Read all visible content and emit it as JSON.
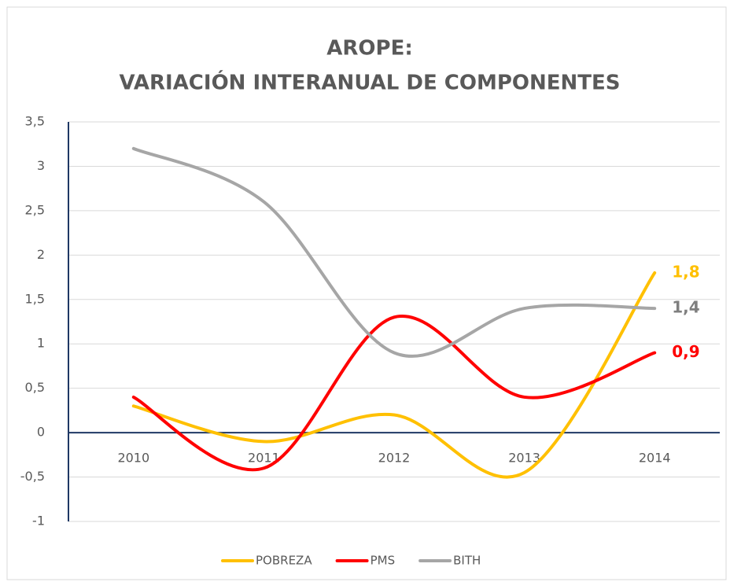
{
  "chart_data": {
    "type": "line",
    "title": [
      "AROPE:",
      "VARIACIÓN INTERANUAL DE COMPONENTES"
    ],
    "categories": [
      "2010",
      "2011",
      "2012",
      "2013",
      "2014"
    ],
    "series": [
      {
        "name": "POBREZA",
        "color": "#ffc000",
        "values": [
          0.3,
          -0.1,
          0.2,
          -0.45,
          1.8
        ],
        "value_labels": [
          null,
          null,
          null,
          null,
          "1,8"
        ]
      },
      {
        "name": "PMS",
        "color": "#ff0000",
        "values": [
          0.4,
          -0.4,
          1.3,
          0.4,
          0.9
        ],
        "value_labels": [
          null,
          null,
          null,
          null,
          "0,9"
        ]
      },
      {
        "name": "BITH",
        "color": "#a6a6a6",
        "values": [
          3.2,
          2.6,
          0.9,
          1.4,
          1.4
        ],
        "value_labels": [
          null,
          null,
          null,
          null,
          "1,4"
        ]
      }
    ],
    "ylim": [
      -1,
      3.5
    ],
    "yticks": [
      -1,
      {
        "value": -0.5,
        "label": "-0,5"
      },
      0,
      {
        "value": 0.5,
        "label": "0,5"
      },
      1,
      {
        "value": 1.5,
        "label": "1,5"
      },
      2,
      {
        "value": 2.5,
        "label": "2,5"
      },
      3,
      {
        "value": 3.5,
        "label": "3,5"
      }
    ],
    "grid": true,
    "legend": "bottom",
    "smooth": true
  }
}
